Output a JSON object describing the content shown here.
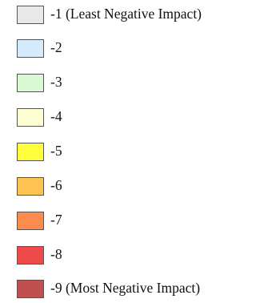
{
  "legend": {
    "items": [
      {
        "label": "-1 (Least Negative Impact)",
        "color": "#e8e8e8"
      },
      {
        "label": "-2",
        "color": "#d3ebfb"
      },
      {
        "label": "-3",
        "color": "#d8f9d2"
      },
      {
        "label": "-4",
        "color": "#fefed4"
      },
      {
        "label": "-5",
        "color": "#fefe3c"
      },
      {
        "label": "-6",
        "color": "#fdc252"
      },
      {
        "label": "-7",
        "color": "#fd8b4d"
      },
      {
        "label": "-8",
        "color": "#ef4a4a"
      },
      {
        "label": "-9 (Most Negative Impact)",
        "color": "#c0504f"
      }
    ]
  }
}
